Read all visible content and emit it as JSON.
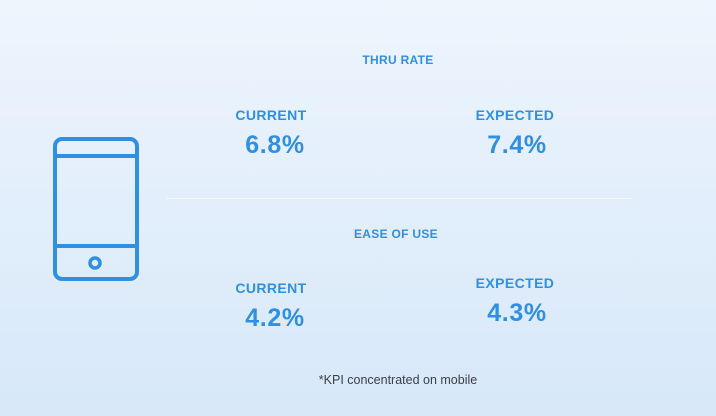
{
  "icon": {
    "name": "mobile-phone-icon"
  },
  "colors": {
    "accent": "#2f8fe3",
    "footnote": "#3a3f47"
  },
  "sections": [
    {
      "title": "THRU RATE",
      "current": {
        "label": "CURRENT",
        "value": "6.8%"
      },
      "expected": {
        "label": "EXPECTED",
        "value": "7.4%"
      }
    },
    {
      "title": "EASE OF USE",
      "current": {
        "label": "CURRENT",
        "value": "4.2%"
      },
      "expected": {
        "label": "EXPECTED",
        "value": "4.3%"
      }
    }
  ],
  "footnote": "*KPI concentrated on mobile"
}
